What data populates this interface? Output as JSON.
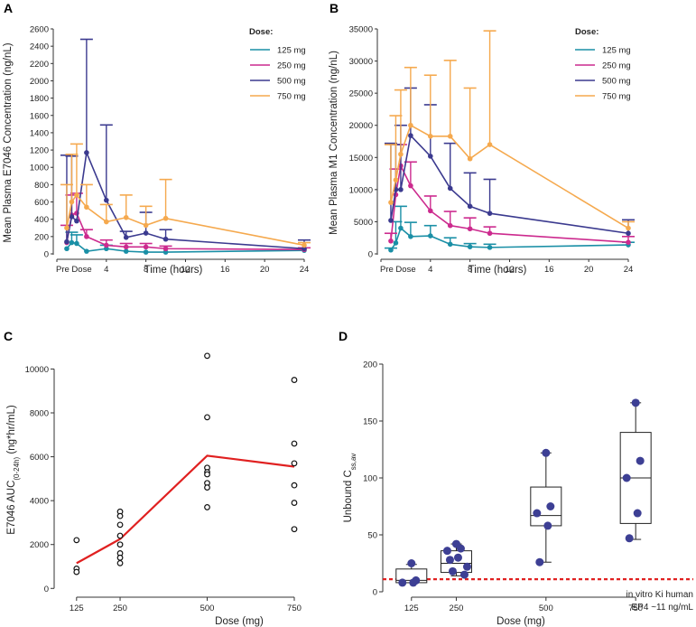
{
  "colors": {
    "c125": "#1a8fa6",
    "c250": "#cc2a8e",
    "c500": "#3b3a8f",
    "c750": "#f5a94e",
    "mean_line": "#e02020",
    "threshold": "#e02020",
    "box_dots": "#3d3f94"
  },
  "chart_data": [
    {
      "id": "A",
      "type": "line",
      "panel_label": "A",
      "ylabel": "Mean Plasma E7046 Concentration (ng/nL)",
      "xlabel": "Time (hours)",
      "ylim": [
        0,
        2600
      ],
      "yticks": [
        0,
        200,
        400,
        600,
        800,
        1000,
        1200,
        1400,
        1600,
        1800,
        2000,
        2200,
        2400,
        2600
      ],
      "xlim": [
        -1,
        24
      ],
      "xticks": [
        {
          "v": -1,
          "label": "Pre Dose"
        },
        {
          "v": 4,
          "label": "4"
        },
        {
          "v": 8,
          "label": "8"
        },
        {
          "v": 12,
          "label": "12"
        },
        {
          "v": 16,
          "label": "16"
        },
        {
          "v": 20,
          "label": "20"
        },
        {
          "v": 24,
          "label": "24"
        }
      ],
      "legend_title": "Dose:",
      "series": [
        {
          "name": "125 mg",
          "color_key": "c125",
          "x": [
            0,
            0.5,
            1,
            2,
            4,
            6,
            8,
            10,
            24
          ],
          "y": [
            60,
            130,
            120,
            30,
            60,
            30,
            20,
            20,
            40
          ],
          "err": [
            0,
            120,
            100,
            0,
            40,
            0,
            0,
            0,
            0
          ]
        },
        {
          "name": "250 mg",
          "color_key": "c250",
          "x": [
            0,
            0.5,
            1,
            2,
            4,
            6,
            8,
            10,
            24
          ],
          "y": [
            130,
            450,
            470,
            200,
            100,
            80,
            80,
            60,
            50
          ],
          "err": [
            200,
            230,
            230,
            80,
            60,
            40,
            40,
            30,
            20
          ]
        },
        {
          "name": "500 mg",
          "color_key": "c500",
          "x": [
            0,
            0.5,
            1,
            2,
            4,
            6,
            8,
            10,
            24
          ],
          "y": [
            140,
            430,
            380,
            1170,
            620,
            190,
            240,
            170,
            60
          ],
          "err": [
            1000,
            700,
            0,
            1310,
            870,
            70,
            240,
            110,
            100
          ]
        },
        {
          "name": "750 mg",
          "color_key": "c750",
          "x": [
            0,
            0.5,
            1,
            2,
            4,
            6,
            8,
            10,
            24
          ],
          "y": [
            300,
            600,
            680,
            540,
            370,
            420,
            330,
            410,
            100
          ],
          "err": [
            500,
            550,
            590,
            260,
            200,
            260,
            220,
            450,
            30
          ]
        }
      ]
    },
    {
      "id": "B",
      "type": "line",
      "panel_label": "B",
      "ylabel": "Mean Plasma M1 Concentration (ng/nL)",
      "xlabel": "Time (hours)",
      "ylim": [
        0,
        35000
      ],
      "yticks": [
        0,
        5000,
        10000,
        15000,
        20000,
        25000,
        30000,
        35000
      ],
      "xlim": [
        -1,
        24
      ],
      "xticks": [
        {
          "v": -1,
          "label": "Pre Dose"
        },
        {
          "v": 4,
          "label": "4"
        },
        {
          "v": 8,
          "label": "8"
        },
        {
          "v": 12,
          "label": "12"
        },
        {
          "v": 16,
          "label": "16"
        },
        {
          "v": 20,
          "label": "20"
        },
        {
          "v": 24,
          "label": "24"
        }
      ],
      "legend_title": "Dose:",
      "series": [
        {
          "name": "125 mg",
          "color_key": "c125",
          "x": [
            0,
            0.5,
            1,
            2,
            4,
            6,
            8,
            10,
            24
          ],
          "y": [
            600,
            1700,
            4000,
            2700,
            2800,
            1500,
            1100,
            1000,
            1400
          ],
          "err": [
            300,
            3300,
            3400,
            2200,
            1600,
            1000,
            500,
            500,
            400
          ]
        },
        {
          "name": "250 mg",
          "color_key": "c250",
          "x": [
            0,
            0.5,
            1,
            2,
            4,
            6,
            8,
            10,
            24
          ],
          "y": [
            2000,
            9200,
            13700,
            10600,
            6700,
            4400,
            3900,
            3200,
            1800
          ],
          "err": [
            1200,
            4000,
            3300,
            3700,
            2300,
            2200,
            1700,
            1000,
            900
          ]
        },
        {
          "name": "500 mg",
          "color_key": "c500",
          "x": [
            0,
            0.5,
            1,
            2,
            4,
            6,
            8,
            10,
            24
          ],
          "y": [
            5200,
            10000,
            10000,
            18400,
            15200,
            10200,
            7400,
            6300,
            3200
          ],
          "err": [
            12000,
            7000,
            10000,
            7400,
            8000,
            7000,
            5200,
            5300,
            2100
          ]
        },
        {
          "name": "750 mg",
          "color_key": "c750",
          "x": [
            0,
            0.5,
            1,
            2,
            4,
            6,
            8,
            10,
            24
          ],
          "y": [
            8000,
            11500,
            15500,
            20000,
            18300,
            18300,
            14800,
            17000,
            4000
          ],
          "err": [
            9000,
            10000,
            10000,
            9000,
            9500,
            11800,
            11000,
            17700,
            1000
          ]
        }
      ]
    },
    {
      "id": "C",
      "type": "scatter",
      "panel_label": "C",
      "ylabel_main": "E7046 AUC",
      "ylabel_sub": "(0-24h)",
      "ylabel_tail": " (ng*hr/mL)",
      "xlabel": "Dose (mg)",
      "ylim": [
        -400,
        10800
      ],
      "yticks": [
        0,
        2000,
        4000,
        6000,
        8000,
        10000
      ],
      "xlim": [
        40,
        820
      ],
      "xticks": [
        125,
        250,
        500,
        750
      ],
      "points": [
        {
          "dose": 125,
          "values": [
            2200,
            900,
            750
          ]
        },
        {
          "dose": 250,
          "values": [
            3500,
            3300,
            2900,
            2400,
            2000,
            1600,
            1400,
            1150
          ]
        },
        {
          "dose": 500,
          "values": [
            10600,
            7800,
            5500,
            5300,
            5200,
            4800,
            4600,
            3700
          ]
        },
        {
          "dose": 750,
          "values": [
            9500,
            6600,
            5700,
            4700,
            3900,
            2700
          ]
        }
      ],
      "mean_line": {
        "x": [
          125,
          250,
          500,
          750
        ],
        "y": [
          1150,
          2250,
          6050,
          5550
        ]
      }
    },
    {
      "id": "D",
      "type": "box",
      "panel_label": "D",
      "ylabel_main": "Unbound C",
      "ylabel_sub": "ss,av",
      "xlabel": "Dose (mg)",
      "ylim": [
        0,
        200
      ],
      "yticks": [
        0,
        50,
        100,
        150,
        200
      ],
      "xlim": [
        40,
        820
      ],
      "xticks": [
        125,
        250,
        500,
        750
      ],
      "threshold": 11,
      "threshold_label_1": "in vitro Ki human",
      "threshold_label_2": "EP4 ~11 ng/mL",
      "boxes": [
        {
          "dose": 125,
          "min": 8,
          "q1": 8,
          "median": 10,
          "q3": 20,
          "max": 24,
          "points": [
            25,
            10,
            8,
            8
          ]
        },
        {
          "dose": 250,
          "min": 14,
          "q1": 17,
          "median": 25,
          "q3": 36,
          "max": 42,
          "points": [
            42,
            38,
            36,
            30,
            28,
            22,
            18,
            15
          ]
        },
        {
          "dose": 500,
          "min": 26,
          "q1": 58,
          "median": 67,
          "q3": 92,
          "max": 122,
          "points": [
            122,
            75,
            69,
            58,
            26
          ]
        },
        {
          "dose": 750,
          "min": 46,
          "q1": 60,
          "median": 100,
          "q3": 140,
          "max": 166,
          "points": [
            166,
            115,
            100,
            69,
            47
          ]
        }
      ]
    }
  ]
}
